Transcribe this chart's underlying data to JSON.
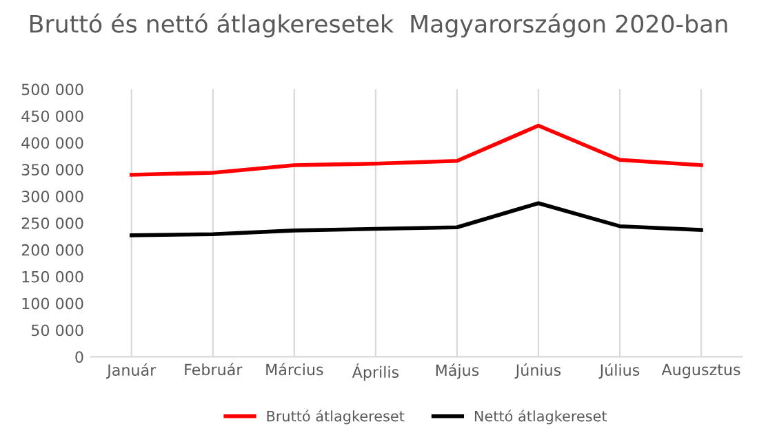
{
  "chart_data": {
    "type": "line",
    "title": "Bruttó és nettó átlagkeresetek  Magyarországon 2020-ban",
    "categories": [
      "Január",
      "Február",
      "Március",
      "Április",
      "Május",
      "Június",
      "Július",
      "Augusztus"
    ],
    "series": [
      {
        "name": "Bruttó átlagkereset",
        "color": "#ff0000",
        "values": [
          340000,
          344000,
          358000,
          361000,
          366000,
          432000,
          368000,
          358000
        ]
      },
      {
        "name": "Nettó átlagkereset",
        "color": "#000000",
        "values": [
          227000,
          229000,
          236000,
          239000,
          242000,
          287000,
          244000,
          237000
        ]
      }
    ],
    "ylim": [
      0,
      500000
    ],
    "yticks": [
      {
        "value": 0,
        "label": "0"
      },
      {
        "value": 50000,
        "label": "50 000"
      },
      {
        "value": 100000,
        "label": "100 000"
      },
      {
        "value": 150000,
        "label": "150 000"
      },
      {
        "value": 200000,
        "label": "200 000"
      },
      {
        "value": 250000,
        "label": "250 000"
      },
      {
        "value": 300000,
        "label": "300 000"
      },
      {
        "value": 350000,
        "label": "350 000"
      },
      {
        "value": 400000,
        "label": "400 000"
      },
      {
        "value": 450000,
        "label": "450 000"
      },
      {
        "value": 500000,
        "label": "500 000"
      }
    ],
    "grid": "x",
    "legend": "bottom",
    "marker": "none",
    "line_style": "solid"
  }
}
